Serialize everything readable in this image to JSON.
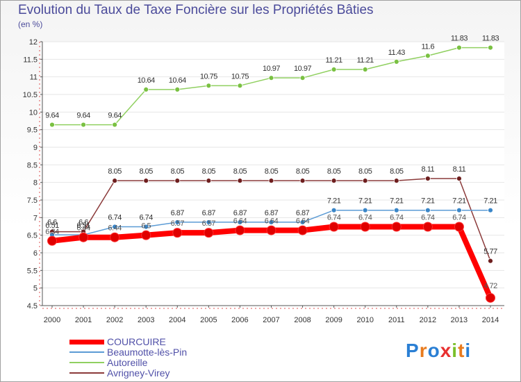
{
  "title": "Evolution du Taux de Taxe Foncière sur les Propriétés Bâties",
  "subtitle": "(en %)",
  "logo": {
    "letters": [
      "P",
      "r",
      "o",
      "x",
      "i",
      "t",
      "i"
    ],
    "colors": [
      "#2a7fd4",
      "#e87b1e",
      "#2a7fd4",
      "#e83030",
      "#7abf2a",
      "#e87b1e",
      "#2a7fd4"
    ]
  },
  "chart_data": {
    "type": "line",
    "title": "Evolution du Taux de Taxe Foncière sur les Propriétés Bâties",
    "ylabel": "(en %)",
    "xlabel": "",
    "ylim": [
      4.5,
      12
    ],
    "yticks": [
      "4.5",
      "5",
      "5.5",
      "6",
      "6.5",
      "7",
      "7.5",
      "8",
      "8.5",
      "9",
      "9.5",
      "10",
      "10.5",
      "11",
      "11.5",
      "12"
    ],
    "categories": [
      "2000",
      "2001",
      "2002",
      "2003",
      "2004",
      "2005",
      "2006",
      "2007",
      "2008",
      "2009",
      "2010",
      "2011",
      "2012",
      "2013",
      "2014"
    ],
    "series": [
      {
        "name": "COURCUIRE",
        "color": "#ff0000",
        "marker": "#e00000",
        "values": [
          6.34,
          6.44,
          6.44,
          6.5,
          6.57,
          6.57,
          6.64,
          6.64,
          6.64,
          6.74,
          6.74,
          6.74,
          6.74,
          6.74,
          4.72
        ],
        "labels": [
          "6.34",
          "6.44",
          "6.44",
          "6.5",
          "6.57",
          "6.57",
          "6.64",
          "6.64",
          "6.64",
          "6.74",
          "6.74",
          "6.74",
          "6.74",
          "6.74",
          "4.72"
        ]
      },
      {
        "name": "Beaumotte-lès-Pin",
        "color": "#5b9bd5",
        "marker": "#3a86c8",
        "values": [
          6.51,
          6.51,
          6.74,
          6.74,
          6.87,
          6.87,
          6.87,
          6.87,
          6.87,
          7.21,
          7.21,
          7.21,
          7.21,
          7.21,
          7.21
        ],
        "labels": [
          "6.51",
          "6.51",
          "6.74",
          "6.74",
          "6.87",
          "6.87",
          "6.87",
          "6.87",
          "6.87",
          "7.21",
          "7.21",
          "7.21",
          "7.21",
          "7.21",
          "7.21"
        ]
      },
      {
        "name": "Autoreille",
        "color": "#90d060",
        "marker": "#7ac142",
        "values": [
          9.64,
          9.64,
          9.64,
          10.64,
          10.64,
          10.75,
          10.75,
          10.97,
          10.97,
          11.21,
          11.21,
          11.43,
          11.6,
          11.83,
          11.83
        ],
        "labels": [
          "9.64",
          "9.64",
          "9.64",
          "10.64",
          "10.64",
          "10.75",
          "10.75",
          "10.97",
          "10.97",
          "11.21",
          "11.21",
          "11.43",
          "11.6",
          "11.83",
          "11.83"
        ]
      },
      {
        "name": "Avrigney-Virey",
        "color": "#8b3a3a",
        "marker": "#6e1f1f",
        "values": [
          6.6,
          6.6,
          8.05,
          8.05,
          8.05,
          8.05,
          8.05,
          8.05,
          8.05,
          8.05,
          8.05,
          8.05,
          8.11,
          8.11,
          5.77
        ],
        "labels": [
          "6.6",
          "6.6",
          "8.05",
          "8.05",
          "8.05",
          "8.05",
          "8.05",
          "8.05",
          "8.05",
          "8.05",
          "8.05",
          "8.05",
          "8.11",
          "8.11",
          "5.77"
        ]
      }
    ],
    "legend_position": "bottom-left"
  }
}
